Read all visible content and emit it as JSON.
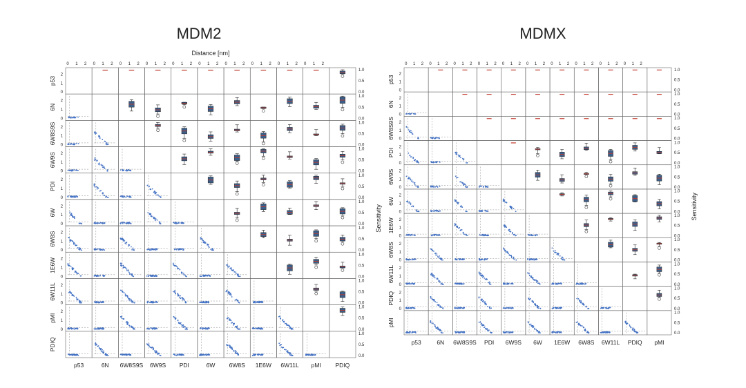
{
  "chart_data": [
    {
      "type": "scatter",
      "title": "MDM2",
      "top_axis_label": "Distance [nm]",
      "right_axis_label": "Sensitivity",
      "labels": [
        "p53",
        "6N",
        "6W8S9S",
        "6W9S",
        "PDI",
        "6W",
        "6W8S",
        "1E6W",
        "6W11L",
        "pMI",
        "PDIQ"
      ],
      "distance_ticks": [
        "0",
        "1",
        "2"
      ],
      "distance_range": [
        0,
        2.5
      ],
      "sensitivity_ticks": [
        "0.0",
        "0.5",
        "1.0"
      ],
      "sensitivity_range": [
        0,
        1
      ],
      "matrix_layout": "lower-triangle scatter (distance vs distance), upper-triangle boxplots (sensitivity)",
      "scatter_point_color": "#4472c4",
      "box_color": "#3c5f8a",
      "median_color": "#c0392b",
      "grid": false
    },
    {
      "type": "scatter",
      "title": "MDMX",
      "top_axis_label": "",
      "right_axis_label": "Sensitivity",
      "labels": [
        "p53",
        "6N",
        "6W8S9S",
        "PDI",
        "6W9S",
        "6W",
        "1E6W",
        "6W8S",
        "6W11L",
        "PDIQ",
        "pMI"
      ],
      "distance_ticks": [
        "0",
        "1",
        "2"
      ],
      "distance_range": [
        0,
        2.5
      ],
      "sensitivity_ticks": [
        "0.0",
        "0.5",
        "1.0"
      ],
      "sensitivity_range": [
        0,
        1
      ],
      "matrix_layout": "lower-triangle scatter (distance vs distance), upper-triangle boxplots (sensitivity)",
      "scatter_point_color": "#4472c4",
      "box_color": "#3c5f8a",
      "median_color": "#c0392b",
      "grid": false
    }
  ]
}
